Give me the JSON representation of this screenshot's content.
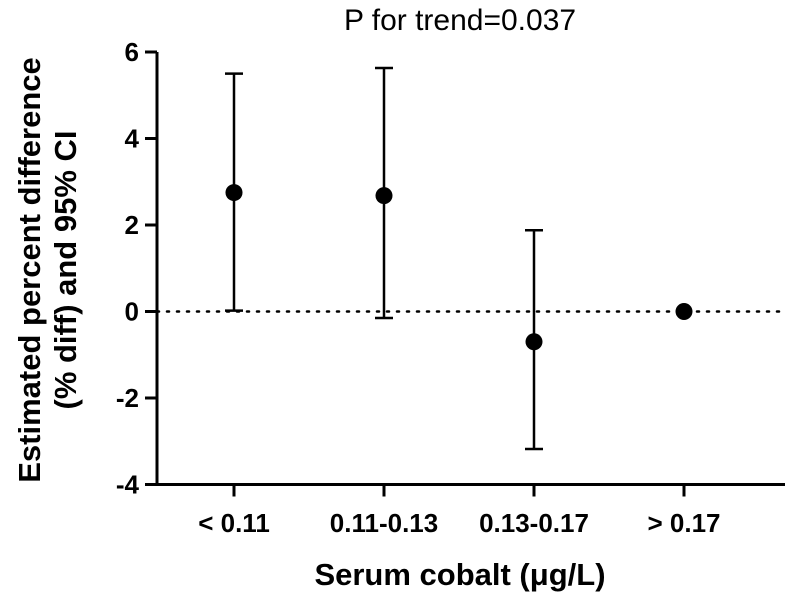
{
  "chart_data": {
    "type": "scatter",
    "title": "P  for trend=0.037",
    "xlabel": "Serum cobalt (μg/L)",
    "ylabel_line1": "Estimated percent difference",
    "ylabel_line2": "(% diff) and 95% CI",
    "categories": [
      "< 0.11",
      "0.11-0.13",
      "0.13-0.17",
      "> 0.17"
    ],
    "points": [
      {
        "category": "< 0.11",
        "estimate": 2.75,
        "ci_lower": 0.02,
        "ci_upper": 5.5
      },
      {
        "category": "0.11-0.13",
        "estimate": 2.68,
        "ci_lower": -0.15,
        "ci_upper": 5.63
      },
      {
        "category": "0.13-0.17",
        "estimate": -0.7,
        "ci_lower": -3.18,
        "ci_upper": 1.88
      },
      {
        "category": "> 0.17",
        "estimate": 0.0,
        "ci_lower": null,
        "ci_upper": null
      }
    ],
    "yticks": [
      "-4",
      "-2",
      "0",
      "2",
      "4",
      "6"
    ],
    "ylim": [
      -4,
      6
    ],
    "reference_line": 0,
    "grid": false,
    "colors": {
      "marker": "#000000",
      "axis": "#000000"
    }
  }
}
